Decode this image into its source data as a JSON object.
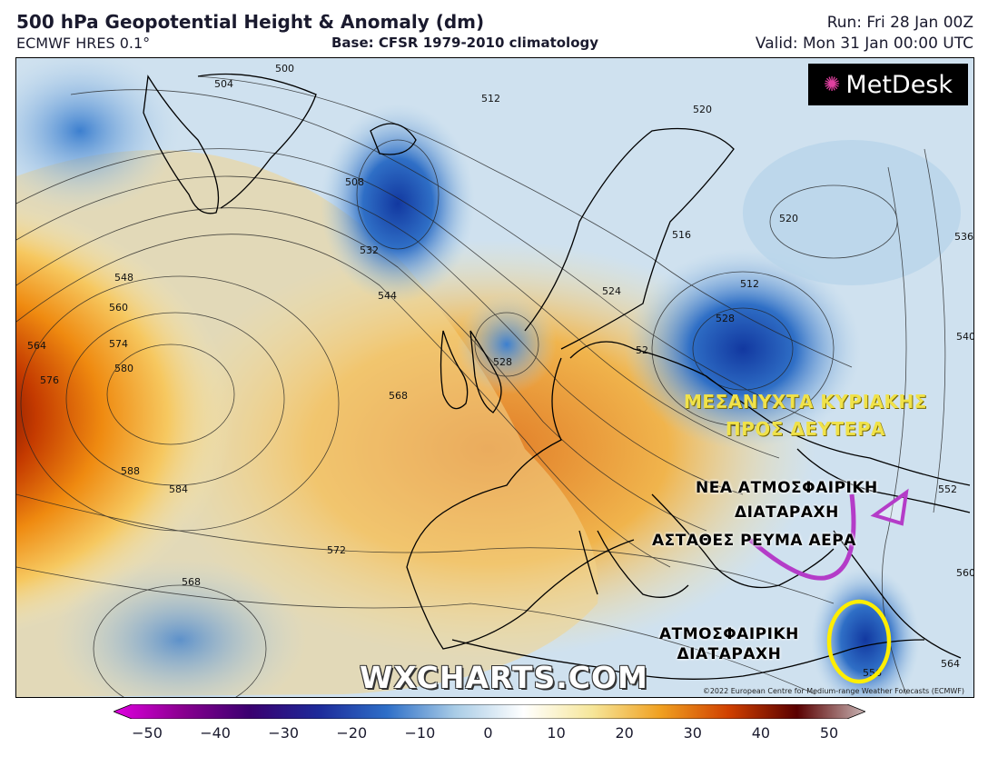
{
  "header": {
    "title": "500 hPa Geopotential Height & Anomaly (dm)",
    "model": "ECMWF HRES 0.1°",
    "base": "Base: CFSR 1979-2010 climatology",
    "run": "Run: Fri 28 Jan 00Z",
    "valid": "Valid: Mon 31 Jan 00:00 UTC"
  },
  "logo": {
    "text": "MetDesk"
  },
  "contour_labels": [
    "500",
    "504",
    "512",
    "508",
    "532",
    "544",
    "548",
    "560",
    "564",
    "576",
    "574",
    "580",
    "568",
    "588",
    "584",
    "572",
    "568",
    "528",
    "516",
    "524",
    "512",
    "520",
    "520",
    "536",
    "540",
    "552",
    "560",
    "556",
    "564",
    "528",
    "52"
  ],
  "annotations": {
    "yellow_line1": "ΜΕΣΑΝΥΧΤΑ ΚΥΡΙΑΚΗΣ",
    "yellow_line2": "ΠΡΟΣ ΔΕΥΤΕΡΑ",
    "new_disturbance_line1": "ΝΕΑ ΑΤΜΟΣΦΑΙΡΙΚΗ",
    "new_disturbance_line2": "ΔΙΑΤΑΡΑΧΗ",
    "unstable_flow": "ΑΣΤΑΘΕΣ ΡΕΥΜΑ ΑΕΡΑ",
    "disturbance_line1": "ΑΤΜΟΣΦΑΙΡΙΚΗ",
    "disturbance_line2": "ΔΙΑΤΑΡΑΧΗ"
  },
  "watermark": "WXCHARTS.COM",
  "copyright": "©2022 European Centre for Medium-range Weather Forecasts (ECMWF)",
  "colorbar": {
    "ticks": [
      "−50",
      "−40",
      "−30",
      "−20",
      "−10",
      "0",
      "10",
      "20",
      "30",
      "40",
      "50"
    ],
    "colors": [
      "#e000e0",
      "#8a0090",
      "#3a0070",
      "#1d2a9a",
      "#2e6fc8",
      "#a9cce6",
      "#ffffff",
      "#f6e69a",
      "#f0a020",
      "#d04000",
      "#5a0000",
      "#c8b4b4"
    ]
  },
  "colors": {
    "accent_yellow": "#f0e24a",
    "arrow_purple": "#b43cc8",
    "circle_yellow": "#ffee00"
  }
}
